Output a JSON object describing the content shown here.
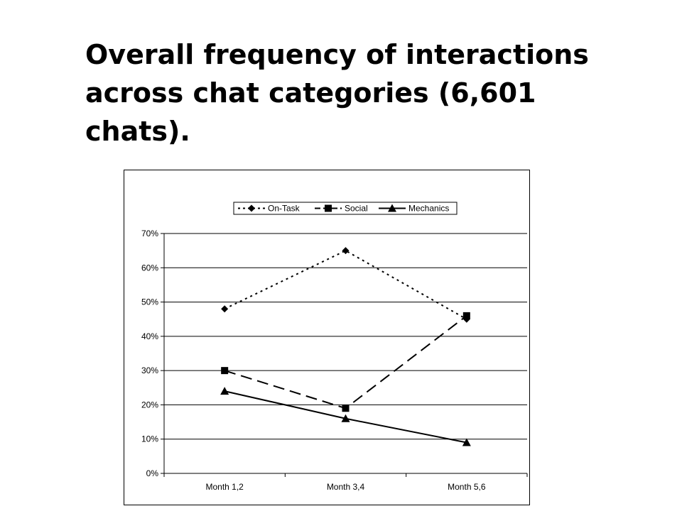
{
  "slide": {
    "title": "Overall frequency of interactions across chat categories (6,601 chats)."
  },
  "chart_data": {
    "type": "line",
    "title": "",
    "xlabel": "",
    "ylabel": "",
    "categories": [
      "Month 1,2",
      "Month 3,4",
      "Month 5,6"
    ],
    "y_ticks": [
      "0%",
      "10%",
      "20%",
      "30%",
      "40%",
      "50%",
      "60%",
      "70%"
    ],
    "ylim": [
      0,
      70
    ],
    "y_unit": "%",
    "grid": true,
    "legend_position": "top",
    "series": [
      {
        "name": "On-Task",
        "values": [
          48,
          65,
          45
        ],
        "marker": "diamond",
        "line_style": "dotted",
        "color": "#000000"
      },
      {
        "name": "Social",
        "values": [
          30,
          19,
          46
        ],
        "marker": "square",
        "line_style": "dashed",
        "color": "#000000"
      },
      {
        "name": "Mechanics",
        "values": [
          24,
          16,
          9
        ],
        "marker": "triangle",
        "line_style": "solid",
        "color": "#000000"
      }
    ]
  }
}
